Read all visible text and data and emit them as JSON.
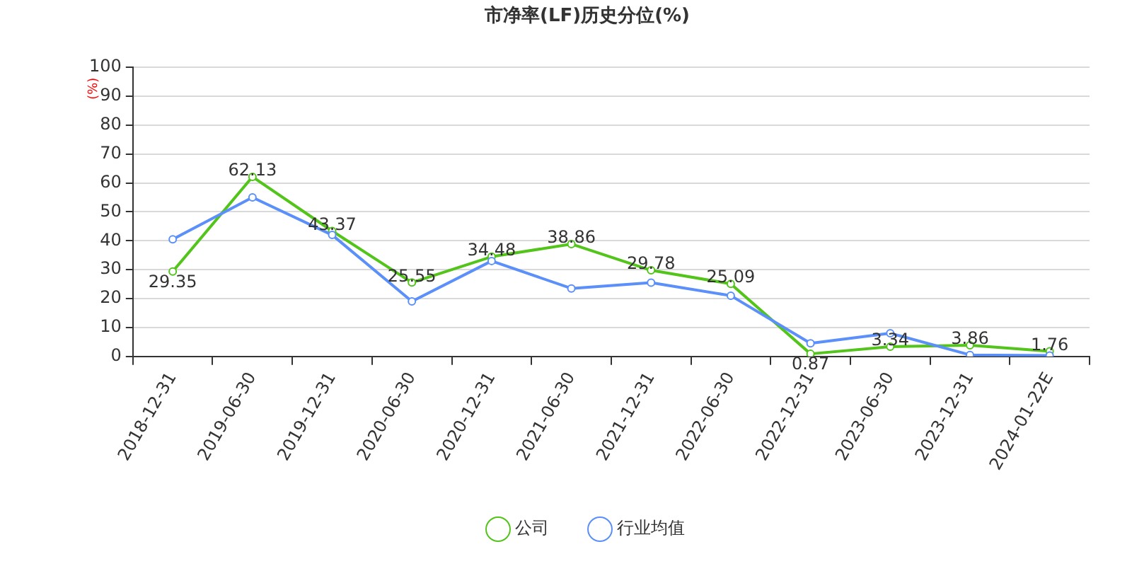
{
  "chart_data": {
    "type": "line",
    "title": "市净率(LF)历史分位(%)",
    "ylabel": "(%)",
    "categories": [
      "2018-12-31",
      "2019-06-30",
      "2019-12-31",
      "2020-06-30",
      "2020-12-31",
      "2021-06-30",
      "2021-12-31",
      "2022-06-30",
      "2022-12-31",
      "2023-06-30",
      "2023-12-31",
      "2024-01-22E"
    ],
    "series": [
      {
        "name": "公司",
        "color": "#52c41a",
        "values": [
          29.35,
          62.13,
          43.37,
          25.55,
          34.48,
          38.86,
          29.78,
          25.09,
          0.87,
          3.34,
          3.86,
          1.76
        ],
        "value_labels": [
          "29.35",
          "62.13",
          "43.37",
          "25.55",
          "34.48",
          "38.86",
          "29.78",
          "25.09",
          "0.87",
          "3.34",
          "3.86",
          "1.76"
        ]
      },
      {
        "name": "行业均值",
        "color": "#5b8ff9",
        "values": [
          40.5,
          55,
          42,
          19,
          33,
          23.5,
          25.5,
          21,
          4.5,
          8,
          0.5,
          0.3
        ]
      }
    ],
    "ylim": [
      0,
      100
    ],
    "yticks": [
      0,
      10,
      20,
      30,
      40,
      50,
      60,
      70,
      80,
      90,
      100
    ],
    "grid": "y",
    "legend": "bottom",
    "marker": "circle",
    "line_style": "solid"
  }
}
